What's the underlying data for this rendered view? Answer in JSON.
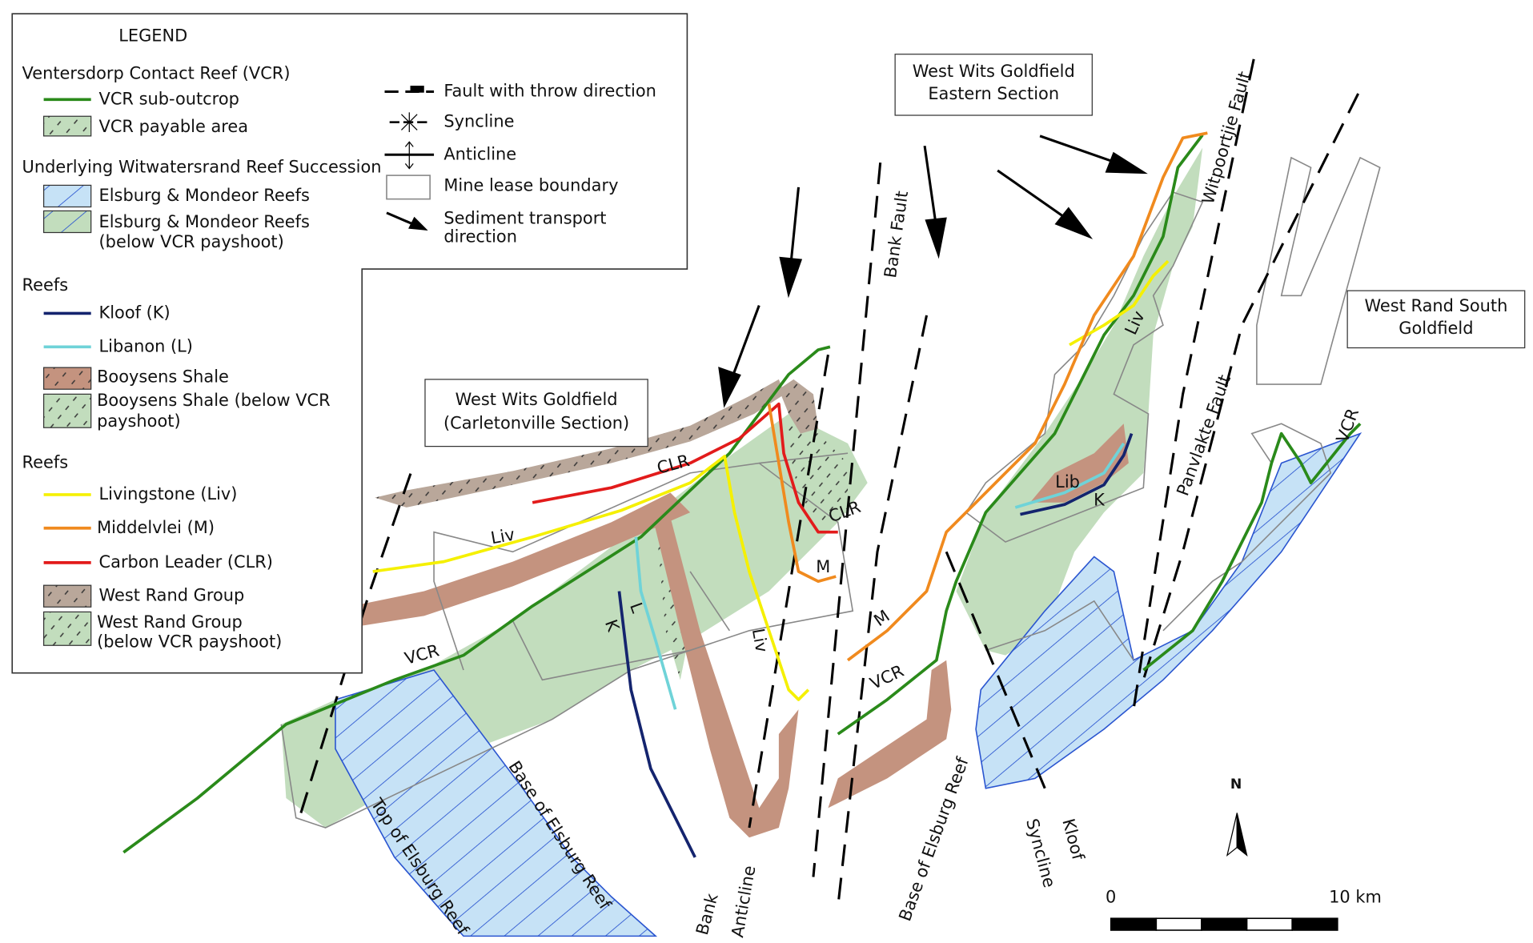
{
  "legend": {
    "title": "LEGEND",
    "vcr": {
      "heading": "Ventersdorp Contact Reef (VCR)",
      "items": [
        [
          "VCR sub-outcrop"
        ],
        [
          "VCR payable area"
        ]
      ]
    },
    "underlying": {
      "heading": "Underlying Witwatersrand Reef Succession",
      "items": [
        [
          "Elsburg & Mondeor Reefs"
        ],
        [
          "Elsburg & Mondeor Reefs",
          "(below VCR payshoot)"
        ]
      ]
    },
    "reefs_a": {
      "heading": "Reefs",
      "items": [
        [
          "Kloof (K)"
        ],
        [
          "Libanon (L)"
        ],
        [
          "Booysens Shale"
        ],
        [
          "Booysens Shale (below VCR",
          "payshoot)"
        ]
      ]
    },
    "reefs_b": {
      "heading": "Reefs",
      "items": [
        [
          "Livingstone (Liv)"
        ],
        [
          "Middelvlei (M)"
        ],
        [
          "Carbon Leader (CLR)"
        ],
        [
          "West Rand Group"
        ],
        [
          "West Rand Group",
          "(below VCR payshoot)"
        ]
      ]
    },
    "symbols": [
      [
        "Fault with throw direction"
      ],
      [
        "Syncline"
      ],
      [
        "Anticline"
      ],
      [
        "Mine lease boundary"
      ],
      [
        "Sediment transport",
        "direction"
      ]
    ]
  },
  "map_labels": [
    "West Wits Goldfield",
    "Eastern Section",
    "West Wits Goldfield",
    "(Carletonville Section)",
    "West Rand South",
    "Goldfield",
    "Bank Fault",
    "Witpoortjie Fault",
    "Panvlakte Fault",
    "Bank",
    "Anticline",
    "Kloof",
    "Syncline",
    "Base of Elsburg Reef",
    "Base of Elsburg Reef",
    "Top of Elsburg Reef",
    "CLR",
    "CLR",
    "Liv",
    "Liv",
    "Liv",
    "M",
    "M",
    "VCR",
    "VCR",
    "VCR",
    "K",
    "L",
    "K",
    "Lib"
  ],
  "north": "N",
  "scale_bar": {
    "labels": [
      "0",
      "10 km"
    ]
  }
}
